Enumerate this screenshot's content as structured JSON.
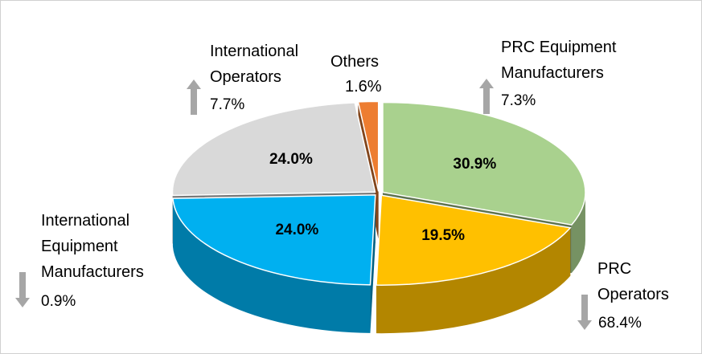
{
  "chart_data": {
    "type": "pie",
    "categories": [
      "PRC Equipment Manufacturers",
      "PRC Operators",
      "International Equipment Manufacturers",
      "International Operators",
      "Others"
    ],
    "values": [
      30.9,
      19.5,
      24.0,
      24.0,
      1.6
    ],
    "value_labels": [
      "30.9%",
      "19.5%",
      "24.0%",
      "24.0%",
      "1.6%"
    ],
    "colors": [
      "#a9d18e",
      "#ffc000",
      "#00b0f0",
      "#d9d9d9",
      "#ed7d31"
    ],
    "changes": [
      7.3,
      68.4,
      0.9,
      7.7,
      null
    ],
    "change_labels": [
      "7.3%",
      "68.4%",
      "0.9%",
      "7.7%",
      null
    ],
    "change_directions": [
      "up",
      "down",
      "down",
      "up",
      null
    ]
  }
}
